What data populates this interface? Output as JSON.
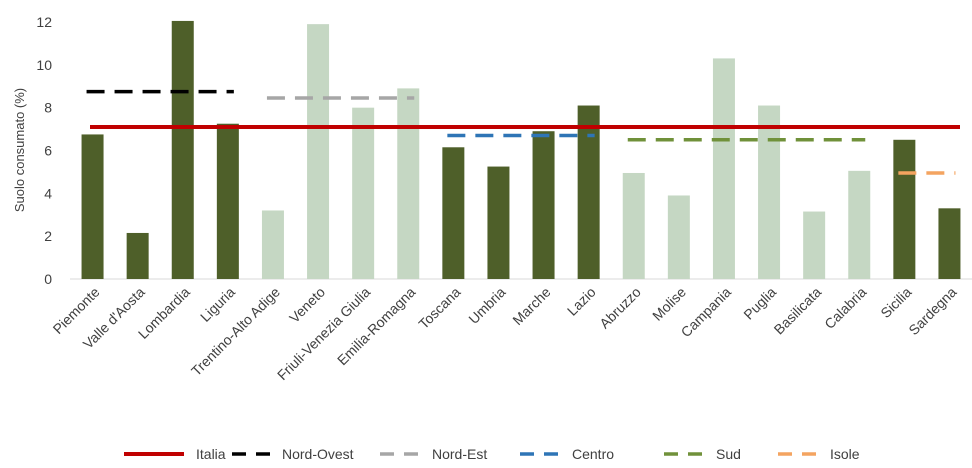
{
  "chart_data": {
    "type": "bar",
    "title": "",
    "xlabel": "",
    "ylabel": "Suolo consumato (%)",
    "ylim": [
      0,
      12
    ],
    "yticks": [
      0,
      2,
      4,
      6,
      8,
      10,
      12
    ],
    "grid": false,
    "legend_position": "bottom",
    "colors": {
      "dark_bar": "#4e5f29",
      "light_bar": "#c5d7c3"
    },
    "categories": [
      "Piemonte",
      "Valle d'Aosta",
      "Lombardia",
      "Liguria",
      "Trentino-Alto Adige",
      "Veneto",
      "Friuli-Venezia Giulia",
      "Emilia-Romagna",
      "Toscana",
      "Umbria",
      "Marche",
      "Lazio",
      "Abruzzo",
      "Molise",
      "Campania",
      "Puglia",
      "Basilicata",
      "Calabria",
      "Sicilia",
      "Sardegna"
    ],
    "values": [
      6.75,
      2.15,
      12.05,
      7.25,
      3.2,
      11.9,
      8.0,
      8.9,
      6.15,
      5.25,
      6.9,
      8.1,
      4.95,
      3.9,
      10.3,
      8.1,
      3.15,
      5.05,
      6.5,
      3.3
    ],
    "bar_shades": [
      "dark",
      "dark",
      "dark",
      "dark",
      "light",
      "light",
      "light",
      "light",
      "dark",
      "dark",
      "dark",
      "dark",
      "light",
      "light",
      "light",
      "light",
      "light",
      "light",
      "dark",
      "dark"
    ],
    "reference_lines": [
      {
        "name": "Italia",
        "value": 7.1,
        "from": "Piemonte",
        "to": "Sardegna",
        "style": "solid",
        "color": "#c00000"
      },
      {
        "name": "Nord-Ovest",
        "value": 8.75,
        "from": "Piemonte",
        "to": "Liguria",
        "style": "dashed",
        "color": "#000000"
      },
      {
        "name": "Nord-Est",
        "value": 8.45,
        "from": "Trentino-Alto Adige",
        "to": "Emilia-Romagna",
        "style": "dashed",
        "color": "#a6a6a6"
      },
      {
        "name": "Centro",
        "value": 6.7,
        "from": "Toscana",
        "to": "Lazio",
        "style": "dashed",
        "color": "#2e75b6"
      },
      {
        "name": "Sud",
        "value": 6.5,
        "from": "Abruzzo",
        "to": "Calabria",
        "style": "dashed",
        "color": "#70913a"
      },
      {
        "name": "Isole",
        "value": 4.95,
        "from": "Sicilia",
        "to": "Sardegna",
        "style": "dashed",
        "color": "#f4a460"
      }
    ]
  }
}
